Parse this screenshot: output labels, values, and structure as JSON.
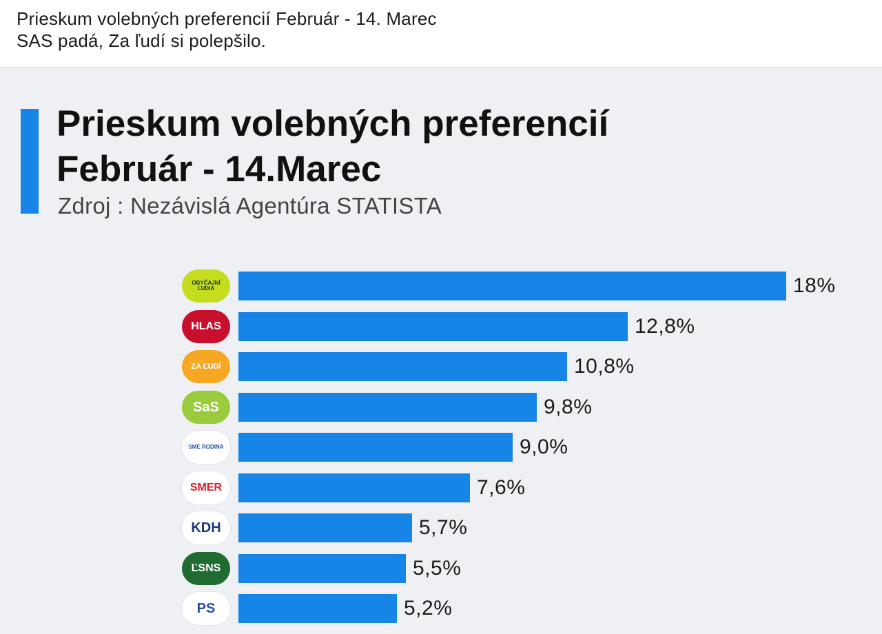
{
  "post": {
    "line1": "Prieskum volebných preferencií Február - 14. Marec",
    "line2": "SAS padá, Za ľudí si polepšilo."
  },
  "chart_data": {
    "type": "bar",
    "orientation": "horizontal",
    "title_line1": "Prieskum volebných preferencií",
    "title_line2": "Február - 14.Marec",
    "subtitle": "Zdroj : Nezávislá Agentúra STATISTA",
    "categories": [
      "OBYČAJNÍ ĽUDIA",
      "HLAS",
      "ZA ĽUDÍ",
      "SaS",
      "SME RODINA",
      "SMER",
      "KDH",
      "ĽSNS",
      "PS"
    ],
    "values": [
      18,
      12.8,
      10.8,
      9.8,
      9.0,
      7.6,
      5.7,
      5.5,
      5.2
    ],
    "value_labels": [
      "18%",
      "12,8%",
      "10,8%",
      "9,8%",
      "9,0%",
      "7,6%",
      "5,7%",
      "5,5%",
      "5,2%"
    ],
    "bar_color": "#1784e8",
    "accent_color": "#1784e8",
    "xlim": [
      0,
      18
    ],
    "grid": false,
    "legend": "none",
    "logos": [
      {
        "text": "OBYČAJNÍ ĽUDIA",
        "icon": "olano-logo-icon",
        "bg": "#c5dc1f",
        "fg": "#1d3a12"
      },
      {
        "text": "HLAS",
        "icon": "hlas-logo-icon",
        "bg": "#c8102e",
        "fg": "#ffffff"
      },
      {
        "text": "ZA ĽUDÍ",
        "icon": "za-ludi-logo-icon",
        "bg": "#f7a823",
        "fg": "#ffffff"
      },
      {
        "text": "SaS",
        "icon": "sas-logo-icon",
        "bg": "#9acb3c",
        "fg": "#ffffff"
      },
      {
        "text": "SME RODINA",
        "icon": "sme-rodina-logo-icon",
        "bg": "#ffffff",
        "fg": "#1f4fa0"
      },
      {
        "text": "SMER",
        "icon": "smer-logo-icon",
        "bg": "#ffffff",
        "fg": "#d21f2b"
      },
      {
        "text": "KDH",
        "icon": "kdh-logo-icon",
        "bg": "#ffffff",
        "fg": "#1a3a7a"
      },
      {
        "text": "ĽSNS",
        "icon": "lsns-logo-icon",
        "bg": "#1f6b32",
        "fg": "#ffffff"
      },
      {
        "text": "PS",
        "icon": "ps-logo-icon",
        "bg": "#ffffff",
        "fg": "#2352a8"
      }
    ]
  }
}
